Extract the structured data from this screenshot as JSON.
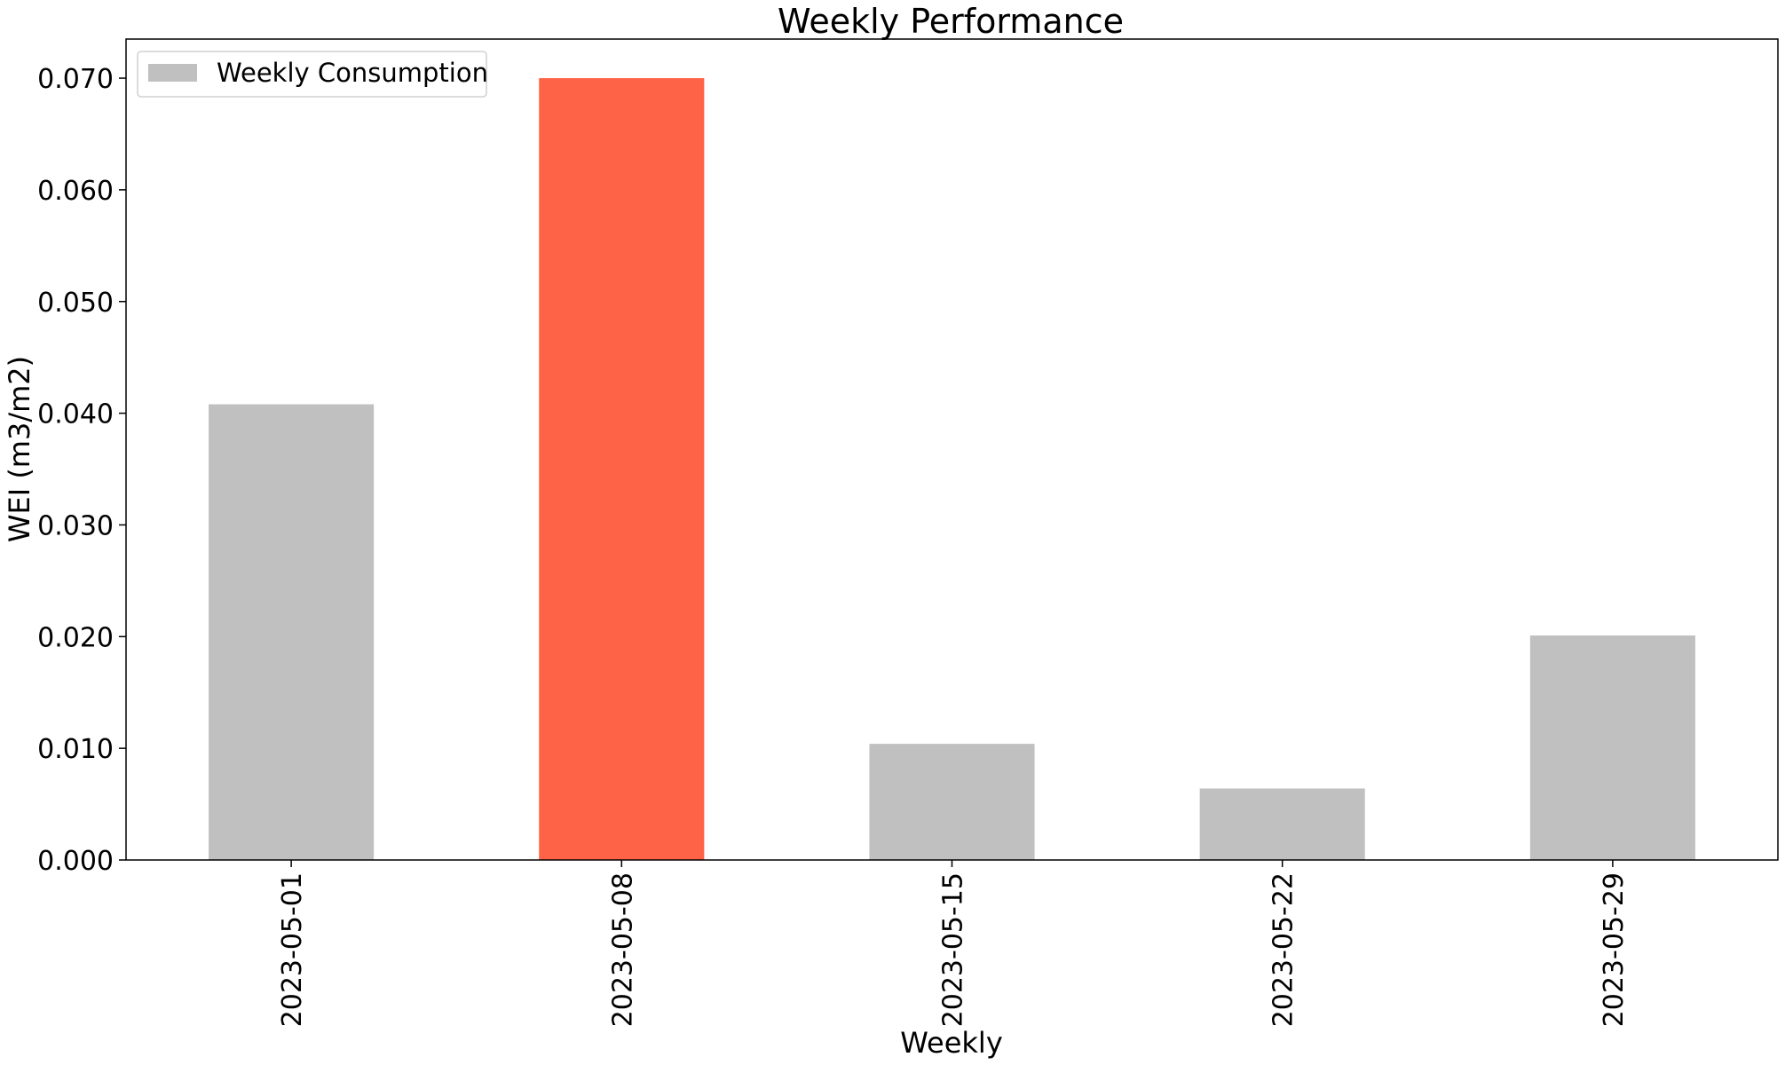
{
  "chart_data": {
    "type": "bar",
    "title": "Weekly Performance",
    "xlabel": "Weekly",
    "ylabel": "WEI (m3/m2)",
    "categories": [
      "2023-05-01",
      "2023-05-08",
      "2023-05-15",
      "2023-05-22",
      "2023-05-29"
    ],
    "series": [
      {
        "name": "Weekly Consumption",
        "values": [
          0.0408,
          0.07,
          0.0104,
          0.0064,
          0.0201
        ],
        "color": "#c0c0c0"
      }
    ],
    "highlight": {
      "index": 1,
      "color": "#ff6347"
    },
    "ylim": [
      0,
      0.0735
    ],
    "yticks": [
      0.0,
      0.01,
      0.02,
      0.03,
      0.04,
      0.05,
      0.06,
      0.07
    ],
    "ytick_labels": [
      "0.000",
      "0.010",
      "0.020",
      "0.030",
      "0.040",
      "0.050",
      "0.060",
      "0.070"
    ],
    "grid": false,
    "legend": {
      "position": "top-left",
      "entries": [
        "Weekly Consumption"
      ]
    }
  }
}
